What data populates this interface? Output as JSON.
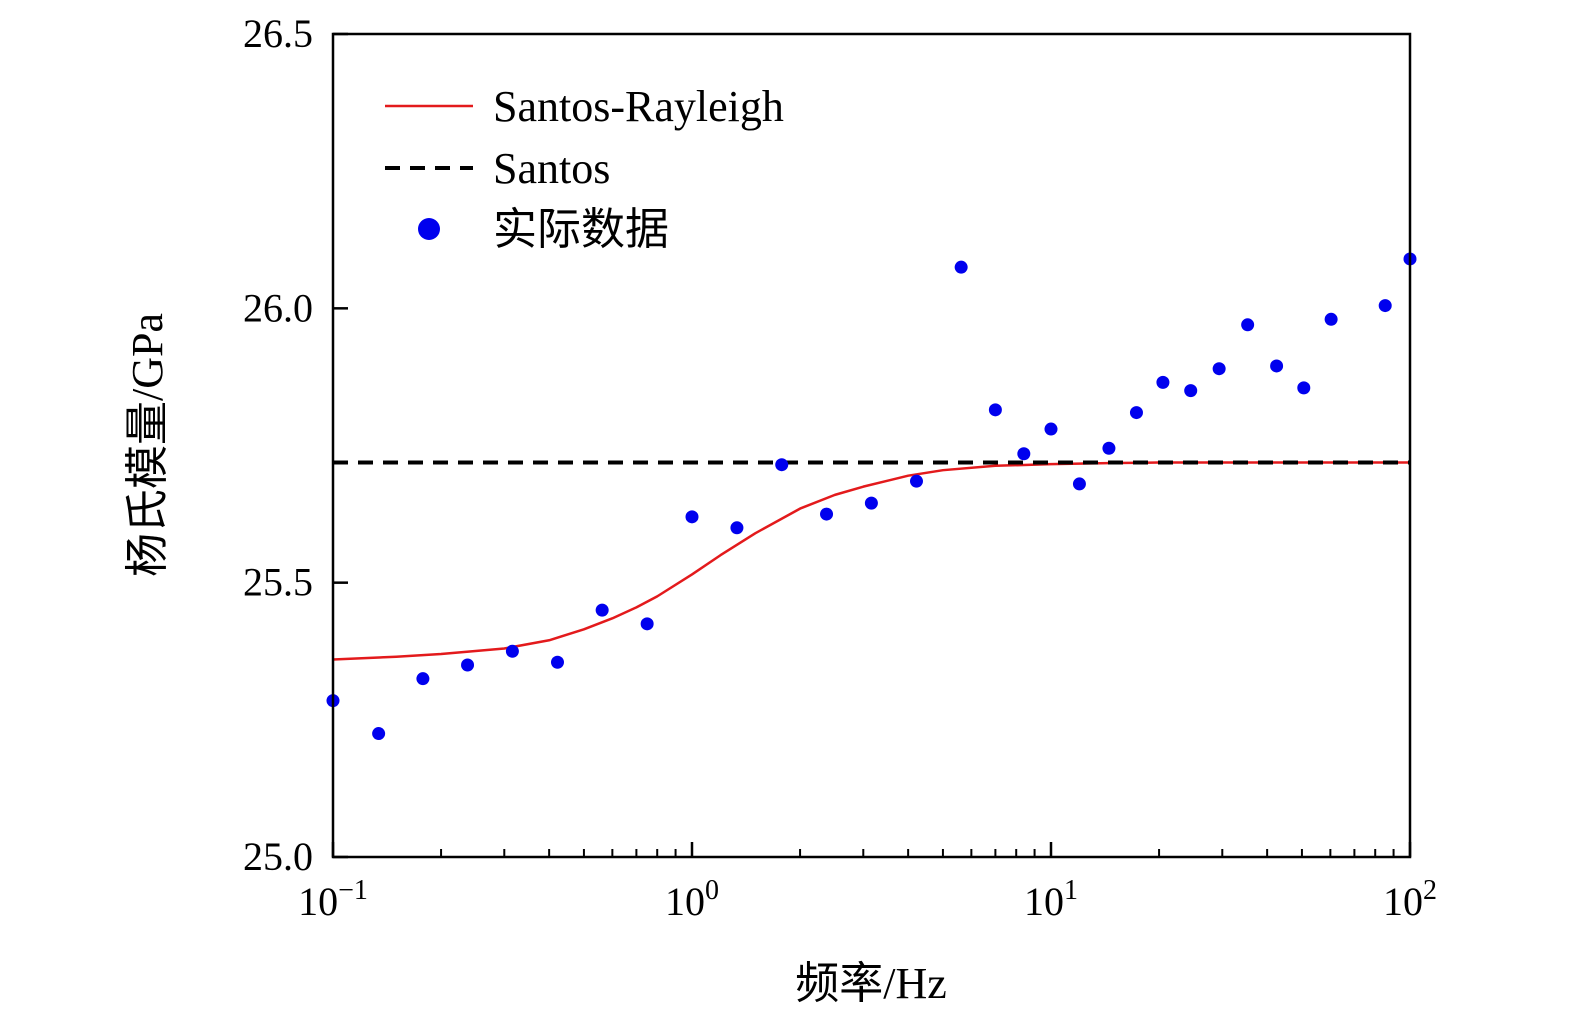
{
  "chart_data": {
    "type": "line",
    "xlabel": "频率/Hz",
    "ylabel": "杨氏模量/GPa",
    "xscale": "log",
    "xlim": [
      0.1,
      100
    ],
    "ylim": [
      25.0,
      26.5
    ],
    "grid": false,
    "legend_position": "top-left",
    "x_ticks": [
      {
        "value": 0.1,
        "base": "10",
        "exp": "−1"
      },
      {
        "value": 1,
        "base": "10",
        "exp": "0"
      },
      {
        "value": 10,
        "base": "10",
        "exp": "1"
      },
      {
        "value": 100,
        "base": "10",
        "exp": "2"
      }
    ],
    "y_ticks": [
      {
        "value": 25.0,
        "label": "25.0"
      },
      {
        "value": 25.5,
        "label": "25.5"
      },
      {
        "value": 26.0,
        "label": "26.0"
      },
      {
        "value": 26.5,
        "label": "26.5"
      }
    ],
    "series": [
      {
        "name": "Santos-Rayleigh",
        "kind": "line",
        "color": "#e31a1c",
        "dash": "solid",
        "x": [
          0.1,
          0.15,
          0.2,
          0.3,
          0.4,
          0.5,
          0.6,
          0.7,
          0.8,
          1.0,
          1.2,
          1.5,
          2.0,
          2.5,
          3.0,
          4.0,
          5.0,
          7.0,
          10.0,
          15.0,
          20.0,
          50.0,
          100.0
        ],
        "y": [
          25.36,
          25.365,
          25.37,
          25.38,
          25.395,
          25.415,
          25.435,
          25.455,
          25.475,
          25.515,
          25.55,
          25.59,
          25.635,
          25.66,
          25.675,
          25.695,
          25.705,
          25.713,
          25.716,
          25.718,
          25.719,
          25.719,
          25.719
        ]
      },
      {
        "name": "Santos",
        "kind": "line",
        "color": "#000000",
        "dash": "dashed",
        "x": [
          0.1,
          100
        ],
        "y": [
          25.719,
          25.719
        ]
      },
      {
        "name": "实际数据",
        "kind": "scatter",
        "color": "#0000ee",
        "x": [
          0.1,
          0.134,
          0.178,
          0.237,
          0.316,
          0.422,
          0.562,
          0.75,
          1.0,
          1.334,
          1.778,
          2.37,
          3.16,
          4.22,
          5.62,
          7.0,
          8.4,
          10.0,
          12.0,
          14.5,
          17.3,
          20.5,
          24.5,
          29.4,
          35.3,
          42.5,
          50.6,
          60.3,
          85.3,
          100.0
        ],
        "y": [
          25.285,
          25.225,
          25.325,
          25.35,
          25.375,
          25.355,
          25.45,
          25.425,
          25.62,
          25.6,
          25.715,
          25.625,
          25.645,
          25.685,
          26.075,
          25.815,
          25.735,
          25.78,
          25.68,
          25.745,
          25.81,
          25.865,
          25.85,
          25.89,
          25.97,
          25.895,
          25.855,
          25.98,
          26.005,
          26.09
        ]
      }
    ]
  }
}
